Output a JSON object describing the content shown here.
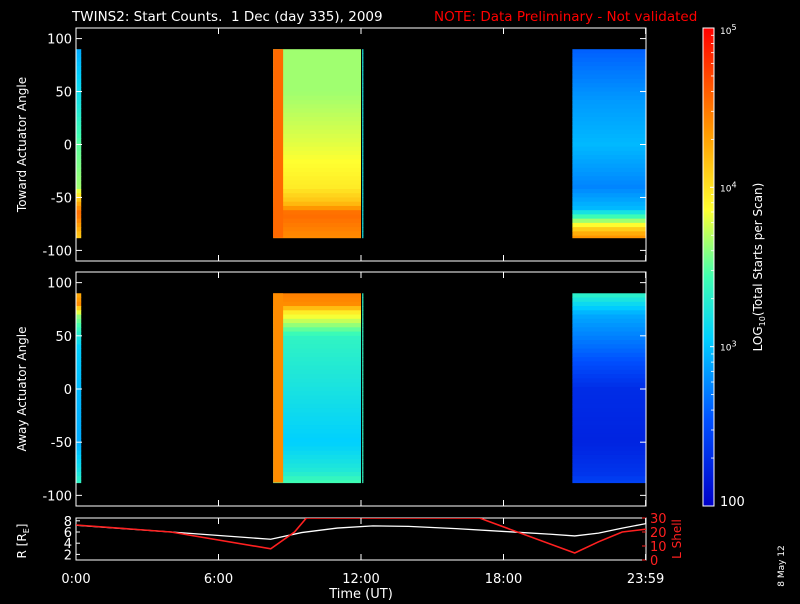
{
  "header": {
    "title": "TWINS2: Start Counts.  1 Dec (day 335), 2009",
    "note": "NOTE: Data Preliminary - Not validated",
    "title_color": "#ffffff",
    "note_color": "#ff0000"
  },
  "footer": {
    "xlabel": "Time (UT)",
    "date_stamp": "8 May 12"
  },
  "chart_data": [
    {
      "type": "heatmap",
      "name": "toward",
      "ylabel": "Toward Actuator Angle",
      "ylim": [
        -110,
        110
      ],
      "yticks": [
        100,
        50,
        0,
        -50,
        -100
      ],
      "yticklabels": [
        "100",
        "50",
        "0",
        "-50",
        "-100"
      ],
      "xlim": [
        0,
        24
      ],
      "angle_range": [
        -88,
        90
      ],
      "data_blocks": [
        {
          "start": 0.0,
          "end": 0.22,
          "profile": [
            [
              90,
              0.3
            ],
            [
              40,
              0.4
            ],
            [
              0,
              0.5
            ],
            [
              -40,
              0.55
            ],
            [
              -55,
              0.75
            ],
            [
              -65,
              0.85
            ],
            [
              -88,
              0.7
            ]
          ]
        },
        {
          "start": 8.3,
          "end": 12.0,
          "profile": [
            [
              90,
              0.55
            ],
            [
              50,
              0.55
            ],
            [
              0,
              0.6
            ],
            [
              -40,
              0.65
            ],
            [
              -55,
              0.72
            ],
            [
              -65,
              0.85
            ],
            [
              -88,
              0.8
            ]
          ],
          "edge_value": 0.85
        },
        {
          "start": 12.05,
          "end": 12.1,
          "profile": [
            [
              90,
              0.4
            ],
            [
              -88,
              0.4
            ]
          ]
        },
        {
          "start": 20.9,
          "end": 23.98,
          "profile": [
            [
              90,
              0.2
            ],
            [
              40,
              0.28
            ],
            [
              0,
              0.32
            ],
            [
              -40,
              0.25
            ],
            [
              -60,
              0.32
            ],
            [
              -80,
              0.7
            ],
            [
              -88,
              0.8
            ]
          ]
        }
      ]
    },
    {
      "type": "heatmap",
      "name": "away",
      "ylabel": "Away Actuator Angle",
      "ylim": [
        -110,
        110
      ],
      "yticks": [
        100,
        50,
        0,
        -50,
        -100
      ],
      "yticklabels": [
        "100",
        "50",
        "0",
        "-50",
        "-100"
      ],
      "xlim": [
        0,
        24
      ],
      "angle_range": [
        -88,
        90
      ],
      "data_blocks": [
        {
          "start": 0.0,
          "end": 0.22,
          "profile": [
            [
              90,
              0.75
            ],
            [
              80,
              0.8
            ],
            [
              70,
              0.55
            ],
            [
              40,
              0.35
            ],
            [
              0,
              0.32
            ],
            [
              -50,
              0.3
            ],
            [
              -78,
              0.4
            ],
            [
              -88,
              0.45
            ]
          ]
        },
        {
          "start": 8.3,
          "end": 12.0,
          "profile": [
            [
              90,
              0.82
            ],
            [
              80,
              0.8
            ],
            [
              72,
              0.65
            ],
            [
              50,
              0.45
            ],
            [
              0,
              0.4
            ],
            [
              -50,
              0.35
            ],
            [
              -78,
              0.42
            ],
            [
              -88,
              0.48
            ]
          ],
          "edge_value": 0.8
        },
        {
          "start": 12.05,
          "end": 12.1,
          "profile": [
            [
              90,
              0.45
            ],
            [
              -88,
              0.45
            ]
          ]
        },
        {
          "start": 20.9,
          "end": 23.98,
          "profile": [
            [
              90,
              0.45
            ],
            [
              70,
              0.3
            ],
            [
              40,
              0.22
            ],
            [
              0,
              0.1
            ],
            [
              -50,
              0.08
            ],
            [
              -80,
              0.12
            ],
            [
              -88,
              0.15
            ]
          ]
        }
      ]
    }
  ],
  "colorbar": {
    "label": "LOG",
    "label_sub": "10",
    "label_rest": "(Total Starts per Scan)",
    "min": 100,
    "max": 100000,
    "ticks": [
      {
        "base": "10",
        "exp": "5",
        "value": 100000
      },
      {
        "base": "10",
        "exp": "4",
        "value": 10000
      },
      {
        "base": "10",
        "exp": "3",
        "value": 1000
      },
      {
        "base": "100",
        "exp": "",
        "value": 100
      }
    ]
  },
  "orbit": {
    "ylabel_main": "R [R",
    "ylabel_sub": "E",
    "ylabel_end": "]",
    "yticks_left": [
      "8",
      "6",
      "4",
      "2"
    ],
    "ylim_left": [
      1,
      8.5
    ],
    "ylabel_right": "L Shell",
    "yticks_right": [
      "30",
      "20",
      "10",
      "0"
    ],
    "ylim_right": [
      0,
      30
    ],
    "xticks": [
      0,
      6,
      12,
      18,
      23.983
    ],
    "xticklabels": [
      "0:00",
      "6:00",
      "12:00",
      "18:00",
      "23:59"
    ],
    "r_color": "#ffffff",
    "lshell_color": "#ff2020",
    "r_series": [
      [
        0,
        7.2
      ],
      [
        4,
        6.0
      ],
      [
        8.2,
        4.7
      ],
      [
        9.5,
        5.9
      ],
      [
        11,
        6.7
      ],
      [
        12.5,
        7.1
      ],
      [
        14,
        7.0
      ],
      [
        16,
        6.6
      ],
      [
        18,
        6.1
      ],
      [
        20,
        5.6
      ],
      [
        21,
        5.3
      ],
      [
        22,
        5.8
      ],
      [
        23,
        6.7
      ],
      [
        24,
        7.5
      ]
    ],
    "lshell_series": [
      [
        0,
        25
      ],
      [
        4,
        20
      ],
      [
        8.2,
        8
      ],
      [
        9.2,
        20
      ],
      [
        9.7,
        30
      ],
      [
        17,
        30
      ],
      [
        17.3,
        28
      ],
      [
        21,
        5
      ],
      [
        22,
        13
      ],
      [
        23,
        20
      ],
      [
        24,
        22
      ]
    ]
  }
}
